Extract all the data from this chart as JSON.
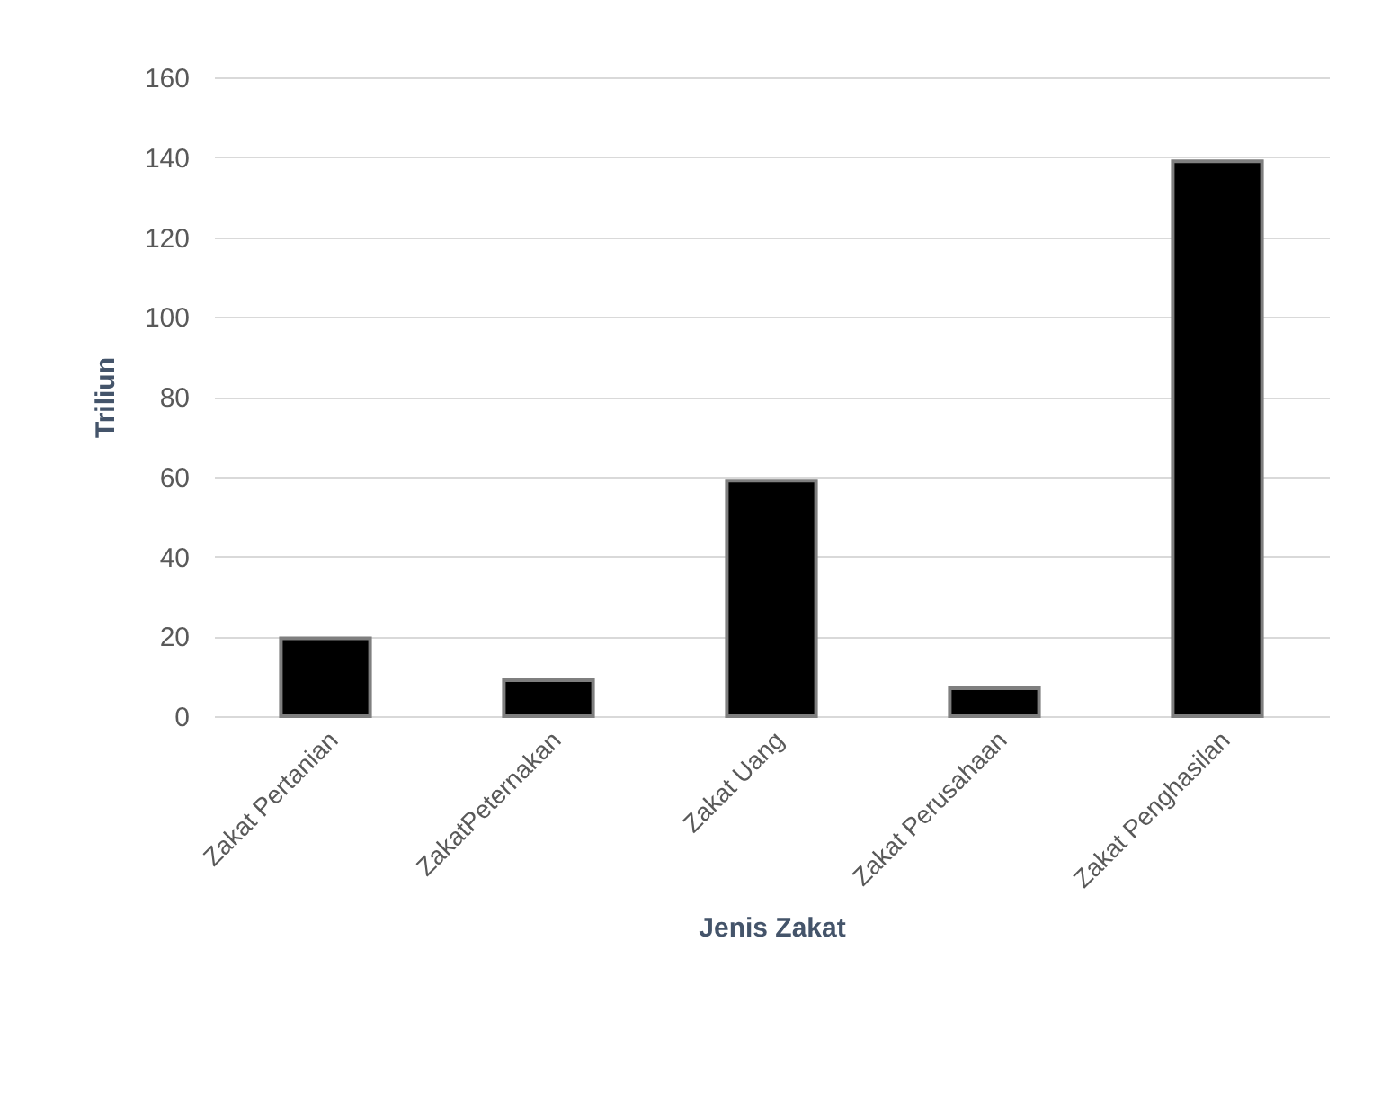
{
  "chart_data": {
    "type": "bar",
    "xlabel": "Jenis Zakat",
    "ylabel": "Triliun",
    "categories": [
      "Zakat Pertanian",
      "ZakatPeternakan",
      "Zakat Uang",
      "Zakat Perusahaan",
      "Zakat Penghasilan"
    ],
    "values": [
      19.5,
      9,
      59,
      7,
      139
    ],
    "color": "#000000",
    "ylim": [
      0,
      160
    ],
    "yticks": [
      0,
      20,
      40,
      60,
      80,
      100,
      120,
      140,
      160
    ],
    "grid": "y"
  }
}
